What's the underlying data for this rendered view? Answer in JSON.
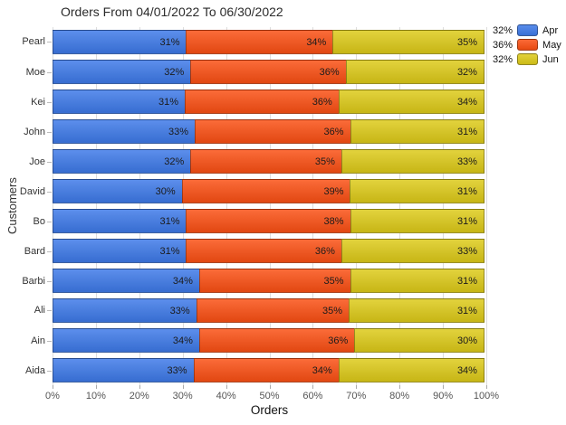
{
  "title": "Orders From 04/01/2022 To 06/30/2022",
  "chart_data": {
    "type": "bar",
    "variant": "stacked-100",
    "orientation": "horizontal",
    "title": "Orders From 04/01/2022 To 06/30/2022",
    "xlabel": "Orders",
    "ylabel": "Customers",
    "xlim": [
      0,
      100
    ],
    "grid": true,
    "legend_position": "top-right",
    "x_ticks": [
      "0%",
      "10%",
      "20%",
      "30%",
      "40%",
      "50%",
      "60%",
      "70%",
      "80%",
      "90%",
      "100%"
    ],
    "categories": [
      "Pearl",
      "Moe",
      "Kei",
      "John",
      "Joe",
      "David",
      "Bo",
      "Bard",
      "Barbi",
      "Ali",
      "Ain",
      "Aida"
    ],
    "series": [
      {
        "name": "Apr",
        "color": "#3d79e8",
        "legend_value": "32%",
        "values": [
          31,
          32,
          31,
          33,
          32,
          30,
          31,
          31,
          34,
          33,
          34,
          33
        ]
      },
      {
        "name": "May",
        "color": "#fa4f13",
        "legend_value": "36%",
        "values": [
          34,
          36,
          36,
          36,
          35,
          39,
          38,
          36,
          35,
          35,
          36,
          34
        ]
      },
      {
        "name": "Jun",
        "color": "#ddca18",
        "legend_value": "32%",
        "values": [
          35,
          32,
          34,
          31,
          33,
          31,
          31,
          33,
          31,
          31,
          30,
          34
        ]
      }
    ],
    "value_suffix": "%"
  }
}
